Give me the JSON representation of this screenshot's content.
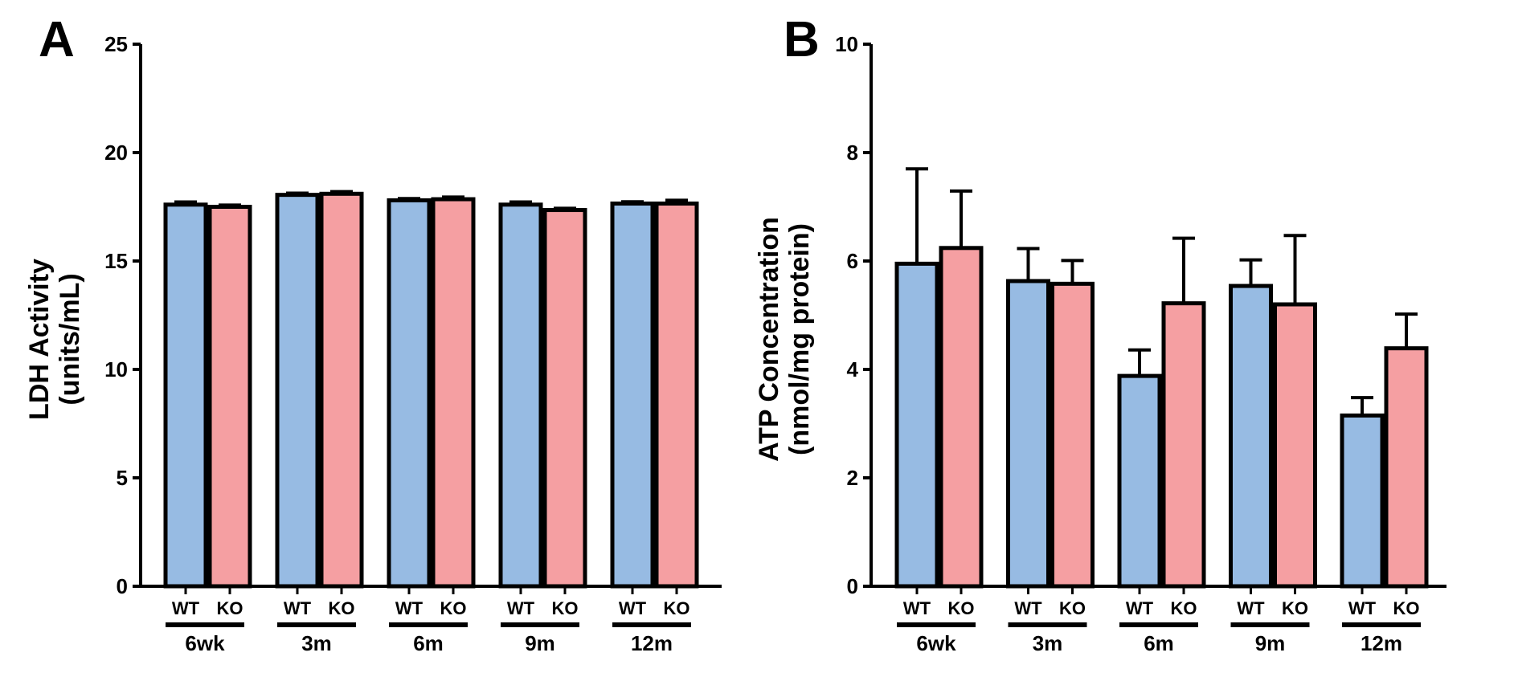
{
  "chart_data": [
    {
      "type": "bar",
      "panel": "A",
      "title": "",
      "ylabel_line1": "LDH Activity",
      "ylabel_line2": "(units/mL)",
      "xlabel": "",
      "ylim": [
        0,
        25
      ],
      "yticks": [
        0,
        5,
        10,
        15,
        20,
        25
      ],
      "categories": [
        "6wk",
        "3m",
        "6m",
        "9m",
        "12m"
      ],
      "conditions": [
        "WT",
        "KO"
      ],
      "series": [
        {
          "name": "WT",
          "color": "#97BBE3",
          "values": [
            17.6,
            18.05,
            17.8,
            17.6,
            17.65
          ],
          "errors": [
            0.12,
            0.08,
            0.08,
            0.12,
            0.08
          ]
        },
        {
          "name": "KO",
          "color": "#F59FA2",
          "values": [
            17.5,
            18.1,
            17.85,
            17.35,
            17.65
          ],
          "errors": [
            0.08,
            0.1,
            0.1,
            0.08,
            0.15
          ]
        }
      ],
      "grid": false,
      "legend": "none"
    },
    {
      "type": "bar",
      "panel": "B",
      "title": "",
      "ylabel_line1": "ATP Concentration",
      "ylabel_line2": "(nmol/mg protein)",
      "xlabel": "",
      "ylim": [
        0,
        10
      ],
      "yticks": [
        0,
        2,
        4,
        6,
        8,
        10
      ],
      "categories": [
        "6wk",
        "3m",
        "6m",
        "9m",
        "12m"
      ],
      "conditions": [
        "WT",
        "KO"
      ],
      "series": [
        {
          "name": "WT",
          "color": "#97BBE3",
          "values": [
            5.95,
            5.63,
            3.88,
            5.54,
            3.15
          ],
          "errors": [
            1.75,
            0.6,
            0.48,
            0.48,
            0.33
          ]
        },
        {
          "name": "KO",
          "color": "#F59FA2",
          "values": [
            6.24,
            5.58,
            5.22,
            5.2,
            4.39
          ],
          "errors": [
            1.05,
            0.43,
            1.2,
            1.27,
            0.63
          ]
        }
      ],
      "grid": false,
      "legend": "none"
    }
  ]
}
